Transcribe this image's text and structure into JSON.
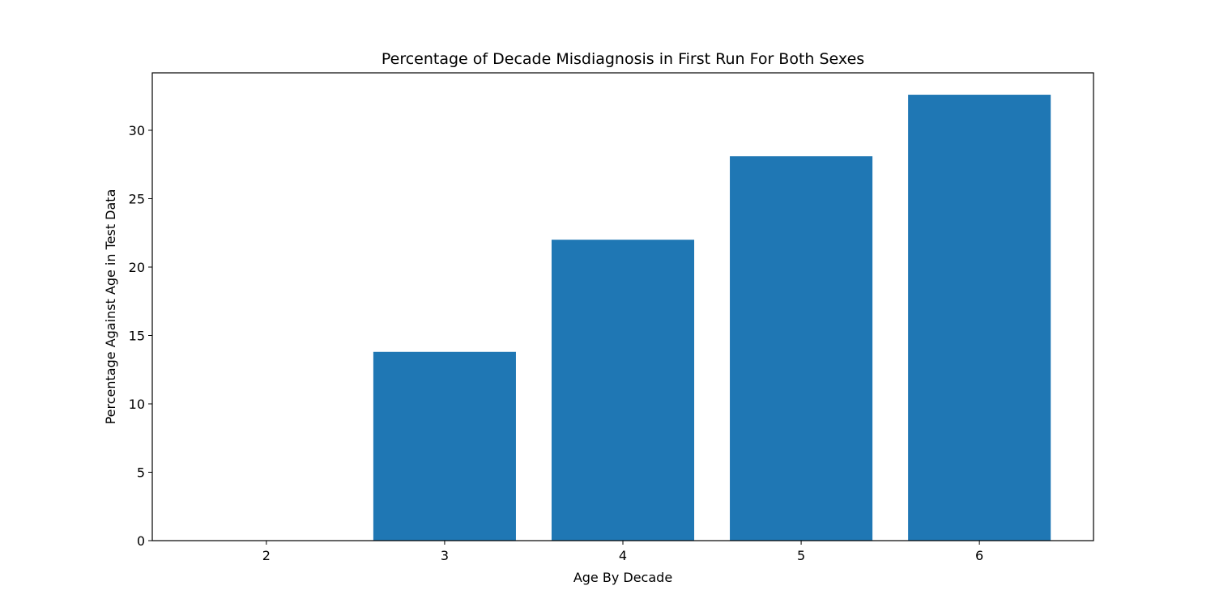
{
  "chart_data": {
    "type": "bar",
    "title": "Percentage of Decade Misdiagnosis in First Run For Both Sexes",
    "xlabel": "Age By Decade",
    "ylabel": "Percentage Against Age in Test Data",
    "categories": [
      "2",
      "3",
      "4",
      "5",
      "6"
    ],
    "values": [
      0,
      13.8,
      22.0,
      28.1,
      32.6
    ],
    "ylim": [
      0,
      34.2
    ],
    "yticks": [
      0,
      5,
      10,
      15,
      20,
      25,
      30
    ],
    "bar_color": "#1f77b4",
    "grid": false,
    "legend": "none"
  }
}
